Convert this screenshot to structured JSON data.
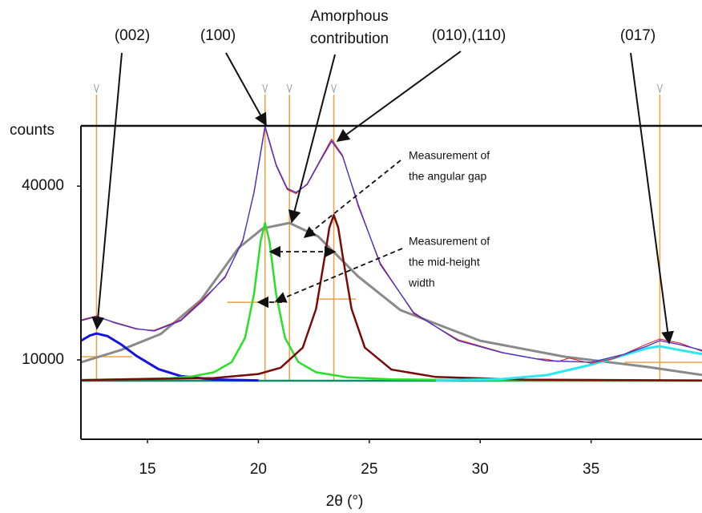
{
  "chart_data": {
    "type": "line",
    "x_label": "2θ (°)",
    "y_label": "counts",
    "xlim": [
      12,
      40
    ],
    "ylim": [
      -3700,
      50400
    ],
    "xticks": [
      15,
      20,
      25,
      30,
      35
    ],
    "yticks": [
      10000,
      40000
    ],
    "series": [
      {
        "color": "#10906a",
        "x": [
          12,
          40
        ],
        "values": [
          6400,
          6400
        ]
      },
      {
        "color": "#8a8a8a",
        "x": [
          12,
          13.8,
          15.6,
          17.4,
          19.1,
          20.2,
          21.4,
          22.7,
          24.5,
          26.4,
          30,
          33.8,
          37.5,
          40
        ],
        "values": [
          9600,
          11700,
          14480,
          20300,
          29300,
          32700,
          33640,
          31300,
          24400,
          18600,
          13300,
          10550,
          8800,
          7400
        ]
      },
      {
        "color": "#1414e0",
        "x": [
          12,
          12.4,
          12.7,
          13.2,
          13.8,
          14.5,
          15.5,
          16.5,
          18,
          20
        ],
        "values": [
          13300,
          14200,
          14560,
          14100,
          12700,
          10700,
          8400,
          7200,
          6600,
          6450
        ]
      },
      {
        "color": "#28e028",
        "x": [
          12,
          16,
          17,
          18,
          18.8,
          19.4,
          19.8,
          20.1,
          20.3,
          20.5,
          20.8,
          21.2,
          21.8,
          22.6,
          24,
          26,
          30,
          40
        ],
        "values": [
          6520,
          6840,
          7140,
          7870,
          9630,
          13800,
          21320,
          30460,
          33640,
          30460,
          21320,
          13800,
          9630,
          7870,
          6990,
          6650,
          6490,
          6430
        ]
      },
      {
        "color": "#7a0a0a",
        "x": [
          12,
          18,
          20,
          21,
          22,
          22.6,
          23,
          23.2,
          23.4,
          23.6,
          23.8,
          24.2,
          24.8,
          26,
          28,
          32,
          40
        ],
        "values": [
          6510,
          6870,
          7560,
          8640,
          12120,
          18800,
          27950,
          32840,
          35000,
          32840,
          27950,
          18800,
          12120,
          8330,
          7050,
          6590,
          6450
        ]
      },
      {
        "color": "#2ee6f0",
        "x": [
          28,
          31,
          33,
          35,
          36.5,
          37.5,
          38.1,
          39,
          40
        ],
        "values": [
          6450,
          6700,
          7370,
          9170,
          10830,
          12000,
          12350,
          11700,
          11000
        ]
      },
      {
        "color": "#e01010",
        "x": [
          12,
          12.7,
          13.5,
          14.5,
          15.3,
          16.5,
          17.5,
          18.5,
          19.3,
          19.8,
          20.3,
          20.8,
          21.3,
          21.7,
          22.2,
          22.8,
          23.3,
          23.8,
          24.5,
          25.5,
          27,
          29,
          31,
          32.5,
          33,
          33.5,
          34,
          35,
          36,
          36.5,
          37.5,
          38.1,
          39,
          40
        ],
        "values": [
          16900,
          17600,
          16400,
          15300,
          15100,
          16900,
          20500,
          24200,
          30800,
          38700,
          50100,
          43500,
          39400,
          38700,
          40400,
          44600,
          48100,
          45300,
          36500,
          26700,
          18000,
          13500,
          11300,
          10200,
          10100,
          9700,
          10300,
          9400,
          10200,
          11000,
          12700,
          13600,
          12900,
          11500
        ]
      },
      {
        "color": "#4b33c8",
        "x": [
          12,
          12.7,
          13.5,
          14.5,
          15.3,
          16.5,
          17.5,
          18.5,
          19.3,
          19.8,
          20.3,
          20.8,
          21.3,
          21.7,
          22.2,
          22.8,
          23.3,
          23.8,
          24.5,
          25.5,
          27,
          29,
          31,
          33,
          35,
          36.5,
          37.5,
          38.1,
          39,
          40
        ],
        "values": [
          16770,
          17470,
          16500,
          15390,
          14980,
          16770,
          20230,
          24380,
          30600,
          38900,
          50370,
          43700,
          39600,
          38900,
          40270,
          44420,
          47740,
          45110,
          36810,
          26450,
          18160,
          13320,
          11240,
          9860,
          9590,
          10970,
          12350,
          13320,
          12630,
          11660
        ]
      }
    ],
    "marker_color": "#f0a040",
    "peak_markers": [
      12.7,
      20.3,
      21.4,
      23.4,
      38.1
    ],
    "half_height_lines": [
      {
        "y": 10550,
        "x": [
          12,
          14.3
        ]
      },
      {
        "y": 19950,
        "x": [
          18.6,
          20.8
        ]
      },
      {
        "y": 20500,
        "x": [
          22.6,
          24.4
        ]
      },
      {
        "y": 9590,
        "x": [
          36.5,
          40
        ]
      }
    ],
    "peak_labels": [
      "(002)",
      "(100)",
      "(010),(110)",
      "(017)"
    ],
    "amorphous_label": [
      "Amorphous",
      "contribution"
    ],
    "notes": [
      [
        "Measurement of",
        "the angular gap"
      ],
      [
        "Measurement of",
        "the mid-height",
        "width"
      ]
    ]
  }
}
